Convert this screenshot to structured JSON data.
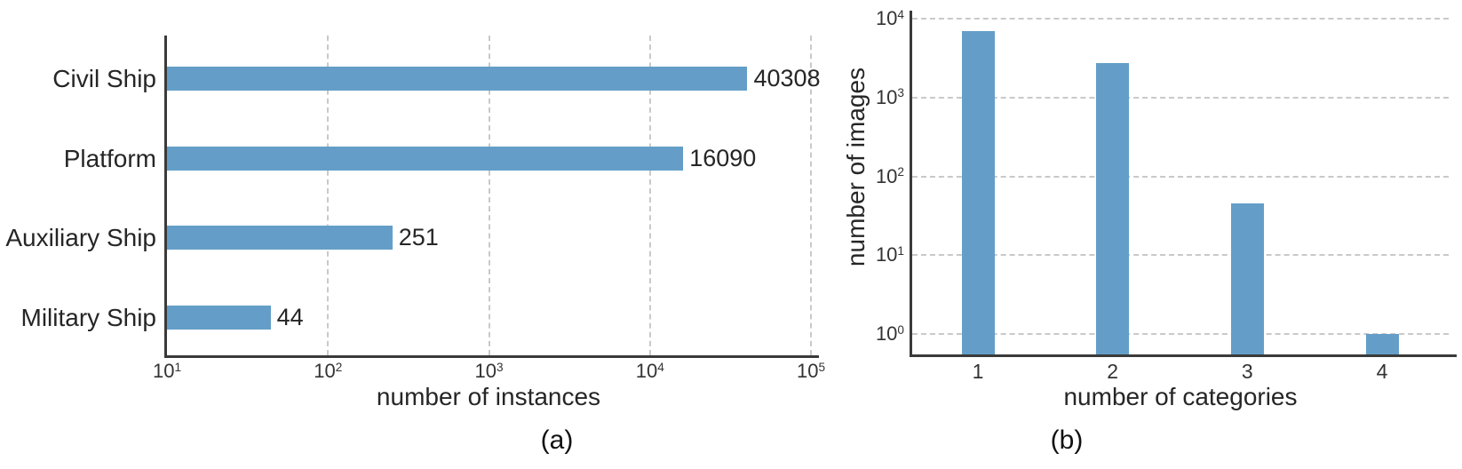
{
  "figure": {
    "background": "#ffffff",
    "bar_color": "#649EC8",
    "grid_color": "#c9c9c9",
    "axis_color": "#3a3a3a",
    "text_color": "#262626"
  },
  "chart_data": [
    {
      "id": "a",
      "type": "bar",
      "orientation": "horizontal",
      "x_scale": "log",
      "categories": [
        "Civil Ship",
        "Platform",
        "Auxiliary Ship",
        "Military Ship"
      ],
      "values": [
        40308,
        16090,
        251,
        44
      ],
      "value_labels": [
        "40308",
        "16090",
        "251",
        "44"
      ],
      "xlabel": "number of instances",
      "x_ticks": [
        "10^1",
        "10^2",
        "10^3",
        "10^4",
        "10^5"
      ],
      "xlim": [
        10,
        100000
      ],
      "grid": "vertical-dashed",
      "legend": "none",
      "caption": "(a)"
    },
    {
      "id": "b",
      "type": "bar",
      "orientation": "vertical",
      "y_scale": "log",
      "categories": [
        "1",
        "2",
        "3",
        "4"
      ],
      "values": [
        7000,
        2700,
        45,
        1
      ],
      "xlabel": "number of categories",
      "ylabel": "number of images",
      "y_ticks": [
        "10^0",
        "10^1",
        "10^2",
        "10^3",
        "10^4"
      ],
      "ylim": [
        0.55,
        10000
      ],
      "grid": "horizontal-dashed",
      "legend": "none",
      "caption": "(b)"
    }
  ]
}
